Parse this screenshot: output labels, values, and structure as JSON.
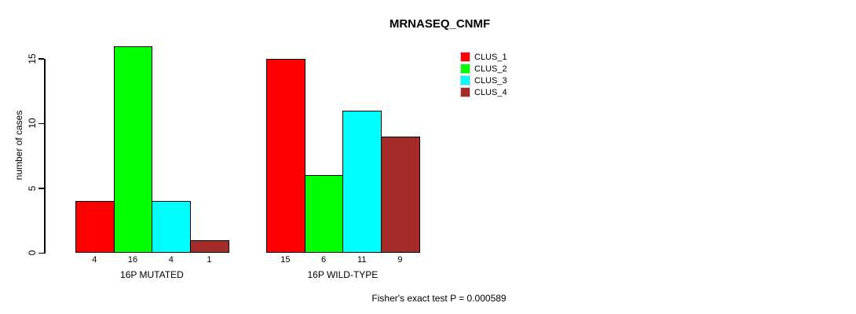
{
  "chart_data": {
    "type": "bar",
    "title": "MRNASEQ_CNMF",
    "ylabel": "number of cases",
    "xlabel": "",
    "ylim": [
      0,
      15
    ],
    "yticks": [
      0,
      5,
      10,
      15
    ],
    "grid": false,
    "legend_position": "top-right",
    "categories": [
      "16P MUTATED",
      "16P WILD-TYPE"
    ],
    "series": [
      {
        "name": "CLUS_1",
        "color": "#ff0000",
        "values": [
          4,
          15
        ]
      },
      {
        "name": "CLUS_2",
        "color": "#00ff00",
        "values": [
          16,
          6
        ]
      },
      {
        "name": "CLUS_3",
        "color": "#00ffff",
        "values": [
          4,
          11
        ]
      },
      {
        "name": "CLUS_4",
        "color": "#a52a2a",
        "values": [
          1,
          9
        ]
      }
    ],
    "bar_value_labels": {
      "16P MUTATED": [
        4,
        16,
        4,
        1
      ],
      "16P WILD-TYPE": [
        15,
        6,
        11,
        9
      ]
    },
    "annotation": "Fisher's exact test P = 0.000589"
  }
}
